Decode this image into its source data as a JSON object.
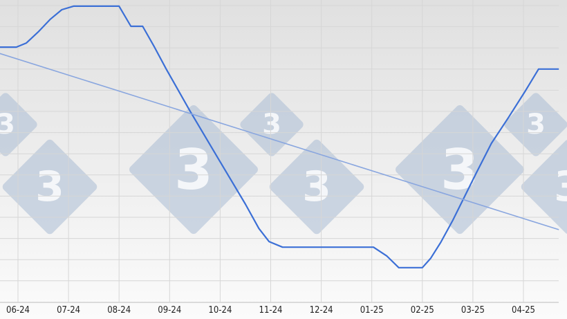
{
  "logo_text": "3",
  "chart_data": {
    "type": "line",
    "title": "",
    "xlabel": "",
    "ylabel": "",
    "x_tick_labels": [
      "06-24",
      "07-24",
      "08-24",
      "09-24",
      "10-24",
      "11-24",
      "12-24",
      "01-25",
      "02-25",
      "03-25",
      "04-25"
    ],
    "y_axis_labels_shown": false,
    "ylim": [
      0,
      100
    ],
    "grid": true,
    "series": [
      {
        "color": "#3b6fd6",
        "points": [
          [
            "2024-05-20",
            86.0
          ],
          [
            "2024-05-30",
            86.0
          ],
          [
            "2024-06-06",
            87.4
          ],
          [
            "2024-06-13",
            91.1
          ],
          [
            "2024-06-20",
            95.3
          ],
          [
            "2024-06-27",
            98.6
          ],
          [
            "2024-07-04",
            99.8
          ],
          [
            "2024-08-01",
            99.8
          ],
          [
            "2024-08-08",
            93.0
          ],
          [
            "2024-08-15",
            93.0
          ],
          [
            "2024-08-22",
            86.0
          ],
          [
            "2024-08-29",
            78.6
          ],
          [
            "2024-09-13",
            64.6
          ],
          [
            "2024-09-30",
            48.3
          ],
          [
            "2024-10-16",
            33.1
          ],
          [
            "2024-10-24",
            24.9
          ],
          [
            "2024-10-30",
            20.5
          ],
          [
            "2024-11-08",
            18.6
          ],
          [
            "2025-01-02",
            18.6
          ],
          [
            "2025-01-10",
            15.6
          ],
          [
            "2025-01-17",
            11.7
          ],
          [
            "2025-01-31",
            11.7
          ],
          [
            "2025-02-06",
            14.9
          ],
          [
            "2025-02-12",
            20.3
          ],
          [
            "2025-02-19",
            27.6
          ],
          [
            "2025-03-03",
            43.6
          ],
          [
            "2025-03-12",
            53.6
          ],
          [
            "2025-03-22",
            62.2
          ],
          [
            "2025-04-02",
            71.1
          ],
          [
            "2025-04-10",
            78.6
          ],
          [
            "2025-04-22",
            78.6
          ]
        ]
      },
      {
        "kind": "trendline",
        "color": "#89a6df",
        "points": [
          [
            "2024-05-20",
            83.9
          ],
          [
            "2025-04-22",
            24.5
          ]
        ]
      }
    ]
  }
}
